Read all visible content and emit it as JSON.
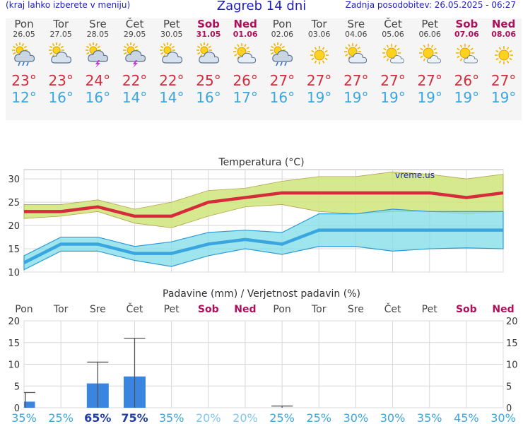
{
  "header": {
    "hint": "(kraj lahko izberete v meniju)",
    "title": "Zagreb 14 dni",
    "updated": "Zadnja posodobitev: 26.05.2025 - 06:27"
  },
  "days": [
    {
      "name": "Pon",
      "date": "26.05",
      "weekend": false,
      "icon": "rain-thunder-icon",
      "hi": "23°",
      "lo": "12°"
    },
    {
      "name": "Tor",
      "date": "27.05",
      "weekend": false,
      "icon": "cloudy-icon",
      "hi": "23°",
      "lo": "16°"
    },
    {
      "name": "Sre",
      "date": "28.05",
      "weekend": false,
      "icon": "thunderstorm-icon",
      "hi": "24°",
      "lo": "16°"
    },
    {
      "name": "Čet",
      "date": "29.05",
      "weekend": false,
      "icon": "thunderstorm-icon",
      "hi": "22°",
      "lo": "14°"
    },
    {
      "name": "Pet",
      "date": "30.05",
      "weekend": false,
      "icon": "cloudy-icon",
      "hi": "22°",
      "lo": "14°"
    },
    {
      "name": "Sob",
      "date": "31.05",
      "weekend": true,
      "icon": "cloudy-icon",
      "hi": "25°",
      "lo": "16°"
    },
    {
      "name": "Ned",
      "date": "01.06",
      "weekend": true,
      "icon": "partly-cloudy-icon",
      "hi": "26°",
      "lo": "17°"
    },
    {
      "name": "Pon",
      "date": "02.06",
      "weekend": false,
      "icon": "rain-thunder-icon",
      "hi": "27°",
      "lo": "16°"
    },
    {
      "name": "Tor",
      "date": "03.06",
      "weekend": false,
      "icon": "sunny-icon",
      "hi": "27°",
      "lo": "19°"
    },
    {
      "name": "Sre",
      "date": "04.06",
      "weekend": false,
      "icon": "partly-cloudy-icon",
      "hi": "27°",
      "lo": "19°"
    },
    {
      "name": "Čet",
      "date": "05.06",
      "weekend": false,
      "icon": "mostly-sunny-icon",
      "hi": "27°",
      "lo": "19°"
    },
    {
      "name": "Pet",
      "date": "06.06",
      "weekend": false,
      "icon": "mostly-sunny-icon",
      "hi": "27°",
      "lo": "19°"
    },
    {
      "name": "Sob",
      "date": "07.06",
      "weekend": true,
      "icon": "mostly-sunny-icon",
      "hi": "26°",
      "lo": "19°"
    },
    {
      "name": "Ned",
      "date": "08.06",
      "weekend": true,
      "icon": "sunny-icon",
      "hi": "27°",
      "lo": "19°"
    }
  ],
  "colors": {
    "high": "#d52b3a",
    "low": "#3aa6e0",
    "weekend": "#b0105a",
    "high_band": "#cfe57a",
    "low_band": "#7fdce8",
    "bar": "#3a85e0"
  },
  "chart_data": [
    {
      "type": "line",
      "title": "Temperatura (°C)",
      "watermark": "vreme.us",
      "ylim": [
        10,
        32
      ],
      "yticks": [
        10,
        15,
        20,
        25,
        30
      ],
      "grid": true,
      "x": [
        "26.05",
        "27.05",
        "28.05",
        "29.05",
        "30.05",
        "31.05",
        "01.06",
        "02.06",
        "03.06",
        "04.06",
        "05.06",
        "06.06",
        "07.06",
        "08.06"
      ],
      "series": [
        {
          "values": [
            23,
            23,
            24,
            22,
            22,
            25,
            26,
            27,
            27,
            27,
            27,
            27,
            26,
            27
          ],
          "band_low": [
            21.5,
            22,
            23,
            20.5,
            19.5,
            22,
            24,
            24.5,
            23,
            22.5,
            23,
            23,
            22.5,
            23
          ],
          "band_high": [
            24.5,
            24.5,
            25.5,
            23.5,
            25,
            27.5,
            28,
            29.5,
            30.5,
            30.5,
            31.5,
            31,
            30,
            31
          ]
        },
        {
          "values": [
            12,
            16,
            16,
            14,
            14,
            16,
            17,
            16,
            19,
            19,
            19,
            19,
            19,
            19
          ],
          "band_low": [
            10.5,
            14.5,
            14.5,
            12.5,
            11.2,
            13.5,
            15,
            13.8,
            15.5,
            15.5,
            14.5,
            15,
            15.2,
            15
          ],
          "band_high": [
            13.5,
            17.5,
            17.5,
            15.5,
            16.5,
            18.5,
            19,
            18.5,
            22.5,
            22.5,
            23.5,
            23,
            23,
            23
          ]
        }
      ]
    },
    {
      "type": "bar",
      "title": "Padavine (mm) / Verjetnost padavin (%)",
      "ylim": [
        0,
        20
      ],
      "yticks": [
        0,
        5,
        10,
        15,
        20
      ],
      "grid": true,
      "categories": [
        "Pon",
        "Tor",
        "Sre",
        "Čet",
        "Pet",
        "Sob",
        "Ned",
        "Pon",
        "Tor",
        "Sre",
        "Čet",
        "Pet",
        "Sob",
        "Ned"
      ],
      "values": [
        1.4,
        0,
        5.6,
        7.2,
        0,
        0,
        0,
        0,
        0,
        0,
        0,
        0,
        0,
        0
      ],
      "max_values": [
        3.5,
        0,
        10.5,
        16,
        0,
        0,
        0,
        0.4,
        0,
        0,
        0,
        0,
        0,
        0
      ],
      "probabilities": [
        "35%",
        "25%",
        "65%",
        "75%",
        "35%",
        "20%",
        "20%",
        "25%",
        "25%",
        "30%",
        "30%",
        "35%",
        "45%",
        "30%"
      ]
    }
  ]
}
